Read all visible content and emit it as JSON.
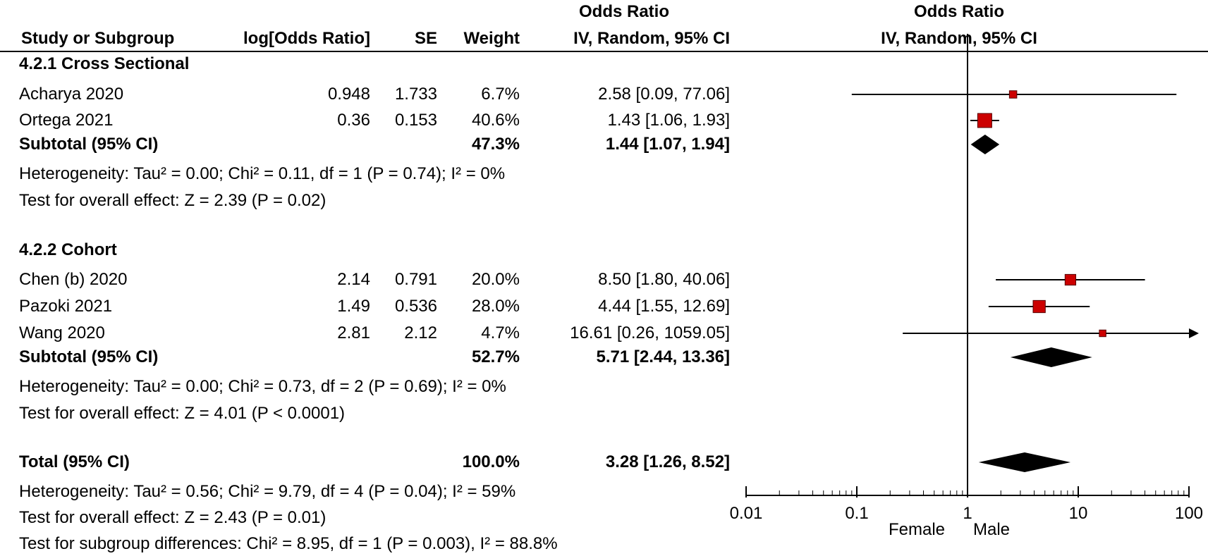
{
  "header": {
    "col_study": "Study or Subgroup",
    "col_log": "log[Odds Ratio]",
    "col_se": "SE",
    "col_weight": "Weight",
    "col_or_top": "Odds Ratio",
    "col_or_bottom": "IV, Random, 95% CI",
    "plot_top": "Odds Ratio",
    "plot_bottom": "IV, Random, 95% CI"
  },
  "groups": [
    {
      "title": "4.2.1 Cross Sectional",
      "studies": [
        {
          "name": "Acharya 2020",
          "log": "0.948",
          "se": "1.733",
          "weight": "6.7%",
          "ci": "2.58 [0.09, 77.06]"
        },
        {
          "name": "Ortega 2021",
          "log": "0.36",
          "se": "0.153",
          "weight": "40.6%",
          "ci": "1.43 [1.06, 1.93]"
        }
      ],
      "subtotal": {
        "label": "Subtotal (95% CI)",
        "weight": "47.3%",
        "ci": "1.44 [1.07, 1.94]"
      },
      "heterogeneity": "Heterogeneity: Tau² = 0.00; Chi² = 0.11, df = 1 (P = 0.74); I² = 0%",
      "overall": "Test for overall effect: Z = 2.39 (P = 0.02)"
    },
    {
      "title": "4.2.2 Cohort",
      "studies": [
        {
          "name": "Chen (b) 2020",
          "log": "2.14",
          "se": "0.791",
          "weight": "20.0%",
          "ci": "8.50 [1.80, 40.06]"
        },
        {
          "name": "Pazoki 2021",
          "log": "1.49",
          "se": "0.536",
          "weight": "28.0%",
          "ci": "4.44 [1.55, 12.69]"
        },
        {
          "name": "Wang 2020",
          "log": "2.81",
          "se": "2.12",
          "weight": "4.7%",
          "ci": "16.61 [0.26, 1059.05]"
        }
      ],
      "subtotal": {
        "label": "Subtotal (95% CI)",
        "weight": "52.7%",
        "ci": "5.71 [2.44, 13.36]"
      },
      "heterogeneity": "Heterogeneity: Tau² = 0.00; Chi² = 0.73, df = 2 (P = 0.69); I² = 0%",
      "overall": "Test for overall effect: Z = 4.01 (P < 0.0001)"
    }
  ],
  "total": {
    "label": "Total (95% CI)",
    "weight": "100.0%",
    "ci": "3.28 [1.26, 8.52]",
    "heterogeneity": "Heterogeneity: Tau² = 0.56; Chi² = 9.79, df = 4 (P = 0.04); I² = 59%",
    "overall": "Test for overall effect: Z = 2.43 (P = 0.01)",
    "subgroup_diff": "Test for subgroup differences: Chi² = 8.95, df = 1 (P = 0.003), I² = 88.8%"
  },
  "axis": {
    "left_label": "Female",
    "right_label": "Male"
  },
  "colors": {
    "point": "#cc0000",
    "diamond": "#000000",
    "line": "#000000"
  },
  "chart_data": {
    "type": "forest",
    "scale": "log",
    "xlim": [
      0.01,
      100
    ],
    "ticks": [
      0.01,
      0.1,
      1,
      10,
      100
    ],
    "tick_labels": [
      "0.01",
      "0.1",
      "1",
      "10",
      "100"
    ],
    "reference_line": 1,
    "studies": [
      {
        "name": "Acharya 2020",
        "or": 2.58,
        "lo": 0.09,
        "hi": 77.06,
        "weight": 6.7
      },
      {
        "name": "Ortega 2021",
        "or": 1.43,
        "lo": 1.06,
        "hi": 1.93,
        "weight": 40.6
      },
      {
        "name": "Chen (b) 2020",
        "or": 8.5,
        "lo": 1.8,
        "hi": 40.06,
        "weight": 20.0
      },
      {
        "name": "Pazoki 2021",
        "or": 4.44,
        "lo": 1.55,
        "hi": 12.69,
        "weight": 28.0
      },
      {
        "name": "Wang 2020",
        "or": 16.61,
        "lo": 0.26,
        "hi": 1059.05,
        "weight": 4.7
      }
    ],
    "summaries": [
      {
        "name": "Subtotal 4.2.1",
        "or": 1.44,
        "lo": 1.07,
        "hi": 1.94
      },
      {
        "name": "Subtotal 4.2.2",
        "or": 5.71,
        "lo": 2.44,
        "hi": 13.36
      },
      {
        "name": "Total",
        "or": 3.28,
        "lo": 1.26,
        "hi": 8.52
      }
    ]
  }
}
